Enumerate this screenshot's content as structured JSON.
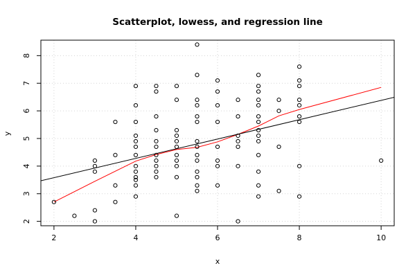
{
  "chart_data": {
    "type": "scatter",
    "title": "Scatterplot, lowess, and regression line",
    "xlabel": "x",
    "ylabel": "y",
    "xlim": [
      1.68,
      10.32
    ],
    "ylim": [
      1.84,
      8.56
    ],
    "x_ticks": [
      2,
      4,
      6,
      8,
      10
    ],
    "y_ticks": [
      2,
      3,
      4,
      5,
      6,
      7,
      8
    ],
    "grid": true,
    "points": [
      [
        2,
        2.7
      ],
      [
        2.5,
        2.2
      ],
      [
        3,
        2.0
      ],
      [
        3,
        2.4
      ],
      [
        3,
        3.8
      ],
      [
        3,
        4.0
      ],
      [
        3,
        4.2
      ],
      [
        3.5,
        2.7
      ],
      [
        3.5,
        3.3
      ],
      [
        3.5,
        4.4
      ],
      [
        3.5,
        5.6
      ],
      [
        4,
        2.9
      ],
      [
        4,
        3.3
      ],
      [
        4,
        3.5
      ],
      [
        4,
        3.6
      ],
      [
        4,
        3.8
      ],
      [
        4,
        4.0
      ],
      [
        4,
        4.4
      ],
      [
        4,
        4.7
      ],
      [
        4,
        4.9
      ],
      [
        4,
        5.1
      ],
      [
        4,
        5.6
      ],
      [
        4,
        6.2
      ],
      [
        4,
        6.9
      ],
      [
        4.5,
        3.6
      ],
      [
        4.5,
        3.8
      ],
      [
        4.5,
        4.0
      ],
      [
        4.5,
        4.2
      ],
      [
        4.5,
        4.4
      ],
      [
        4.5,
        4.7
      ],
      [
        4.5,
        4.9
      ],
      [
        4.5,
        5.3
      ],
      [
        4.5,
        5.8
      ],
      [
        4.5,
        6.7
      ],
      [
        4.5,
        6.9
      ],
      [
        5,
        2.2
      ],
      [
        5,
        3.6
      ],
      [
        5,
        4.0
      ],
      [
        5,
        4.2
      ],
      [
        5,
        4.4
      ],
      [
        5,
        4.7
      ],
      [
        5,
        4.9
      ],
      [
        5,
        5.1
      ],
      [
        5,
        5.3
      ],
      [
        5,
        6.4
      ],
      [
        5,
        6.9
      ],
      [
        5.5,
        3.1
      ],
      [
        5.5,
        3.3
      ],
      [
        5.5,
        3.6
      ],
      [
        5.5,
        3.8
      ],
      [
        5.5,
        4.2
      ],
      [
        5.5,
        4.4
      ],
      [
        5.5,
        4.7
      ],
      [
        5.5,
        4.9
      ],
      [
        5.5,
        5.6
      ],
      [
        5.5,
        5.8
      ],
      [
        5.5,
        6.2
      ],
      [
        5.5,
        6.4
      ],
      [
        5.5,
        7.3
      ],
      [
        5.5,
        8.4
      ],
      [
        6,
        3.3
      ],
      [
        6,
        4.0
      ],
      [
        6,
        4.2
      ],
      [
        6,
        4.7
      ],
      [
        6,
        5.6
      ],
      [
        6,
        6.2
      ],
      [
        6,
        6.7
      ],
      [
        6,
        7.1
      ],
      [
        6.5,
        2.0
      ],
      [
        6.5,
        4.0
      ],
      [
        6.5,
        4.7
      ],
      [
        6.5,
        4.9
      ],
      [
        6.5,
        5.1
      ],
      [
        6.5,
        5.8
      ],
      [
        6.5,
        6.4
      ],
      [
        7,
        2.9
      ],
      [
        7,
        3.3
      ],
      [
        7,
        3.8
      ],
      [
        7,
        4.4
      ],
      [
        7,
        4.9
      ],
      [
        7,
        5.1
      ],
      [
        7,
        5.3
      ],
      [
        7,
        5.6
      ],
      [
        7,
        5.8
      ],
      [
        7,
        6.2
      ],
      [
        7,
        6.4
      ],
      [
        7,
        6.7
      ],
      [
        7,
        6.9
      ],
      [
        7,
        7.3
      ],
      [
        7.5,
        3.1
      ],
      [
        7.5,
        4.7
      ],
      [
        7.5,
        6.0
      ],
      [
        7.5,
        6.4
      ],
      [
        8,
        2.9
      ],
      [
        8,
        4.0
      ],
      [
        8,
        5.6
      ],
      [
        8,
        5.8
      ],
      [
        8,
        6.2
      ],
      [
        8,
        6.4
      ],
      [
        8,
        6.9
      ],
      [
        8,
        7.1
      ],
      [
        8,
        7.6
      ],
      [
        10,
        4.2
      ]
    ],
    "series": [
      {
        "type": "lowess",
        "color": "#ff0000",
        "x": [
          2,
          3,
          4,
          4.5,
          5,
          5.5,
          6,
          6.5,
          7,
          7.5,
          8,
          10
        ],
        "y": [
          2.7,
          3.45,
          4.18,
          4.42,
          4.6,
          4.68,
          4.88,
          5.15,
          5.45,
          5.82,
          6.05,
          6.85
        ]
      },
      {
        "type": "regression",
        "color": "#000000",
        "intercept": 2.88,
        "slope": 0.35
      }
    ],
    "point_color": "#000000"
  }
}
